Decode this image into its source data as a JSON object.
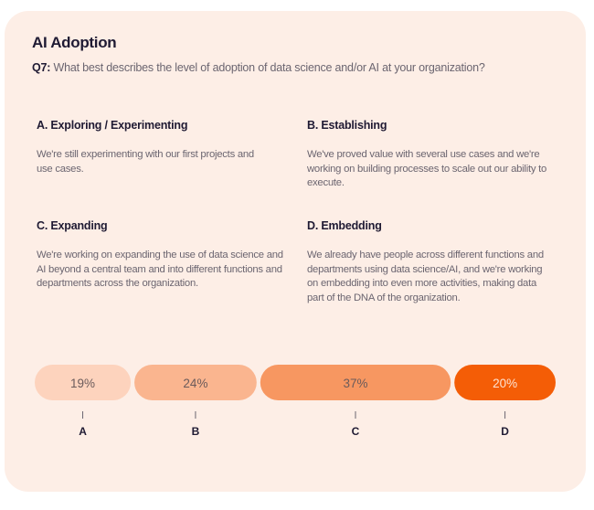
{
  "title": "AI Adoption",
  "question": {
    "label": "Q7:",
    "text": " What best describes the level of adoption of data science and/or AI at your organization?"
  },
  "options": [
    {
      "heading": "A. Exploring / Experimenting",
      "text": "We're still experimenting with our first projects and use cases."
    },
    {
      "heading": "B. Establishing",
      "text": "We've proved value with several use cases and we're working on building processes to scale out our ability to execute."
    },
    {
      "heading": "C. Expanding",
      "text": "We're working on expanding the use of data science and AI beyond a central team and into different functions and departments across the organization."
    },
    {
      "heading": "D. Embedding",
      "text": "We already have people across different functions and departments using data science/AI, and we're working on embedding into even more activities, making data part of the DNA of the organization."
    }
  ],
  "chart_data": {
    "type": "bar",
    "orientation": "horizontal-stacked",
    "categories": [
      "A",
      "B",
      "C",
      "D"
    ],
    "values": [
      19,
      24,
      37,
      20
    ],
    "labels": [
      "19%",
      "24%",
      "37%",
      "20%"
    ],
    "colors": [
      "#fdd3bd",
      "#fab58f",
      "#f79761",
      "#f45d06"
    ],
    "label_colors": [
      "#6b5b5b",
      "#6b5b5b",
      "#6b5b5b",
      "#fde3d3"
    ],
    "unit": "%"
  }
}
